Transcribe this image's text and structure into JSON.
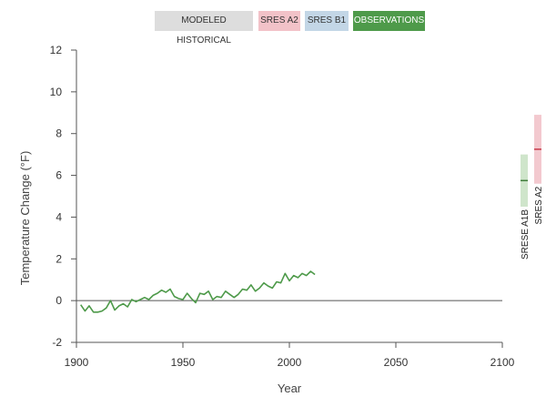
{
  "legend_buttons": [
    {
      "label": "MODELED HISTORICAL",
      "color": "#dddddd",
      "text_color": "#333333"
    },
    {
      "label": "SRES A2",
      "color": "#f2c2c8",
      "text_color": "#333333"
    },
    {
      "label": "SRES B1",
      "color": "#c3d6e6",
      "text_color": "#333333"
    },
    {
      "label": "OBSERVATIONS",
      "color": "#4e9a4a",
      "text_color": "#ffffff"
    }
  ],
  "chart_data": {
    "type": "line",
    "xlabel": "Year",
    "ylabel": "Temperature Change (°F)",
    "xlim": [
      1900,
      2100
    ],
    "ylim": [
      -2,
      12
    ],
    "x_ticks": [
      1900,
      1950,
      2000,
      2050,
      2100
    ],
    "y_ticks": [
      -2,
      0,
      2,
      4,
      6,
      8,
      10,
      12
    ],
    "grid": false,
    "zero_line": true,
    "series": [
      {
        "name": "OBSERVATIONS",
        "color": "#4e9a4a",
        "x": [
          1902,
          1904,
          1906,
          1908,
          1910,
          1912,
          1914,
          1916,
          1918,
          1920,
          1922,
          1924,
          1926,
          1928,
          1930,
          1932,
          1934,
          1936,
          1938,
          1940,
          1942,
          1944,
          1946,
          1948,
          1950,
          1952,
          1954,
          1956,
          1958,
          1960,
          1962,
          1964,
          1966,
          1968,
          1970,
          1972,
          1974,
          1976,
          1978,
          1980,
          1982,
          1984,
          1986,
          1988,
          1990,
          1992,
          1994,
          1996,
          1998,
          2000,
          2002,
          2004,
          2006,
          2008,
          2010,
          2012
        ],
        "values": [
          -0.2,
          -0.5,
          -0.25,
          -0.55,
          -0.55,
          -0.5,
          -0.35,
          0.0,
          -0.45,
          -0.25,
          -0.15,
          -0.3,
          0.05,
          -0.05,
          0.05,
          0.15,
          0.05,
          0.25,
          0.35,
          0.5,
          0.4,
          0.55,
          0.2,
          0.1,
          0.05,
          0.35,
          0.1,
          -0.1,
          0.35,
          0.3,
          0.45,
          0.05,
          0.2,
          0.15,
          0.45,
          0.3,
          0.15,
          0.3,
          0.55,
          0.5,
          0.75,
          0.45,
          0.6,
          0.85,
          0.7,
          0.6,
          0.9,
          0.85,
          1.3,
          0.95,
          1.2,
          1.1,
          1.3,
          1.2,
          1.4,
          1.25
        ]
      }
    ],
    "ranges": [
      {
        "label": "SRESE A1B",
        "low": 4.5,
        "high": 7.0,
        "median": 5.75,
        "fill": "#cfe5cb",
        "line": "#3e7d3a"
      },
      {
        "label": "SRES A2",
        "low": 5.6,
        "high": 8.9,
        "median": 7.25,
        "fill": "#f3c9cf",
        "line": "#c83a4a"
      }
    ]
  }
}
